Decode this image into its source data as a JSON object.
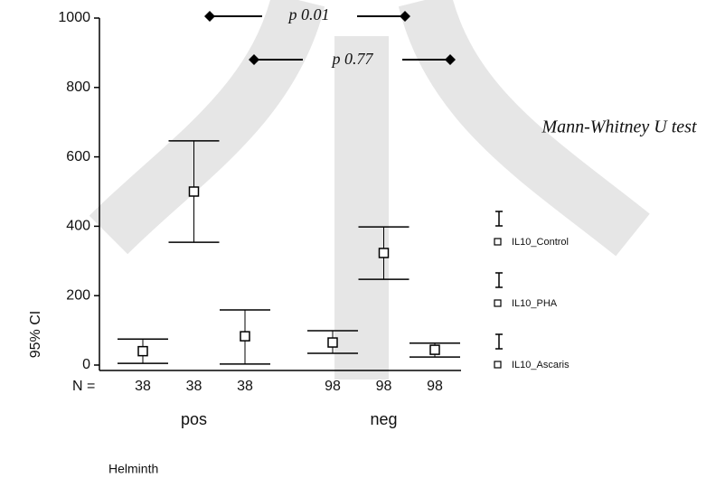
{
  "chart_data": {
    "type": "errorbar",
    "y_label": "95% CI",
    "x_label": "Helminth",
    "categories": [
      "pos",
      "neg"
    ],
    "n_label": "N =",
    "series": [
      {
        "name": "IL10_Control",
        "color": "#000000",
        "values": [
          40,
          65
        ],
        "lower": [
          5,
          34
        ],
        "upper": [
          75,
          99
        ],
        "n": [
          38,
          98
        ]
      },
      {
        "name": "IL10_PHA",
        "color": "#000000",
        "values": [
          500,
          323
        ],
        "lower": [
          354,
          247
        ],
        "upper": [
          646,
          398
        ],
        "n": [
          38,
          98
        ]
      },
      {
        "name": "IL10_Ascaris",
        "color": "#000000",
        "values": [
          83,
          44
        ],
        "lower": [
          3,
          23
        ],
        "upper": [
          159,
          63
        ],
        "n": [
          38,
          98
        ]
      }
    ],
    "ylim": [
      0,
      1000
    ],
    "yticks": [
      0,
      200,
      400,
      600,
      800,
      1000
    ],
    "annotations": [
      "p 0.01",
      "p 0.77",
      "Mann-Whitney U test"
    ]
  }
}
